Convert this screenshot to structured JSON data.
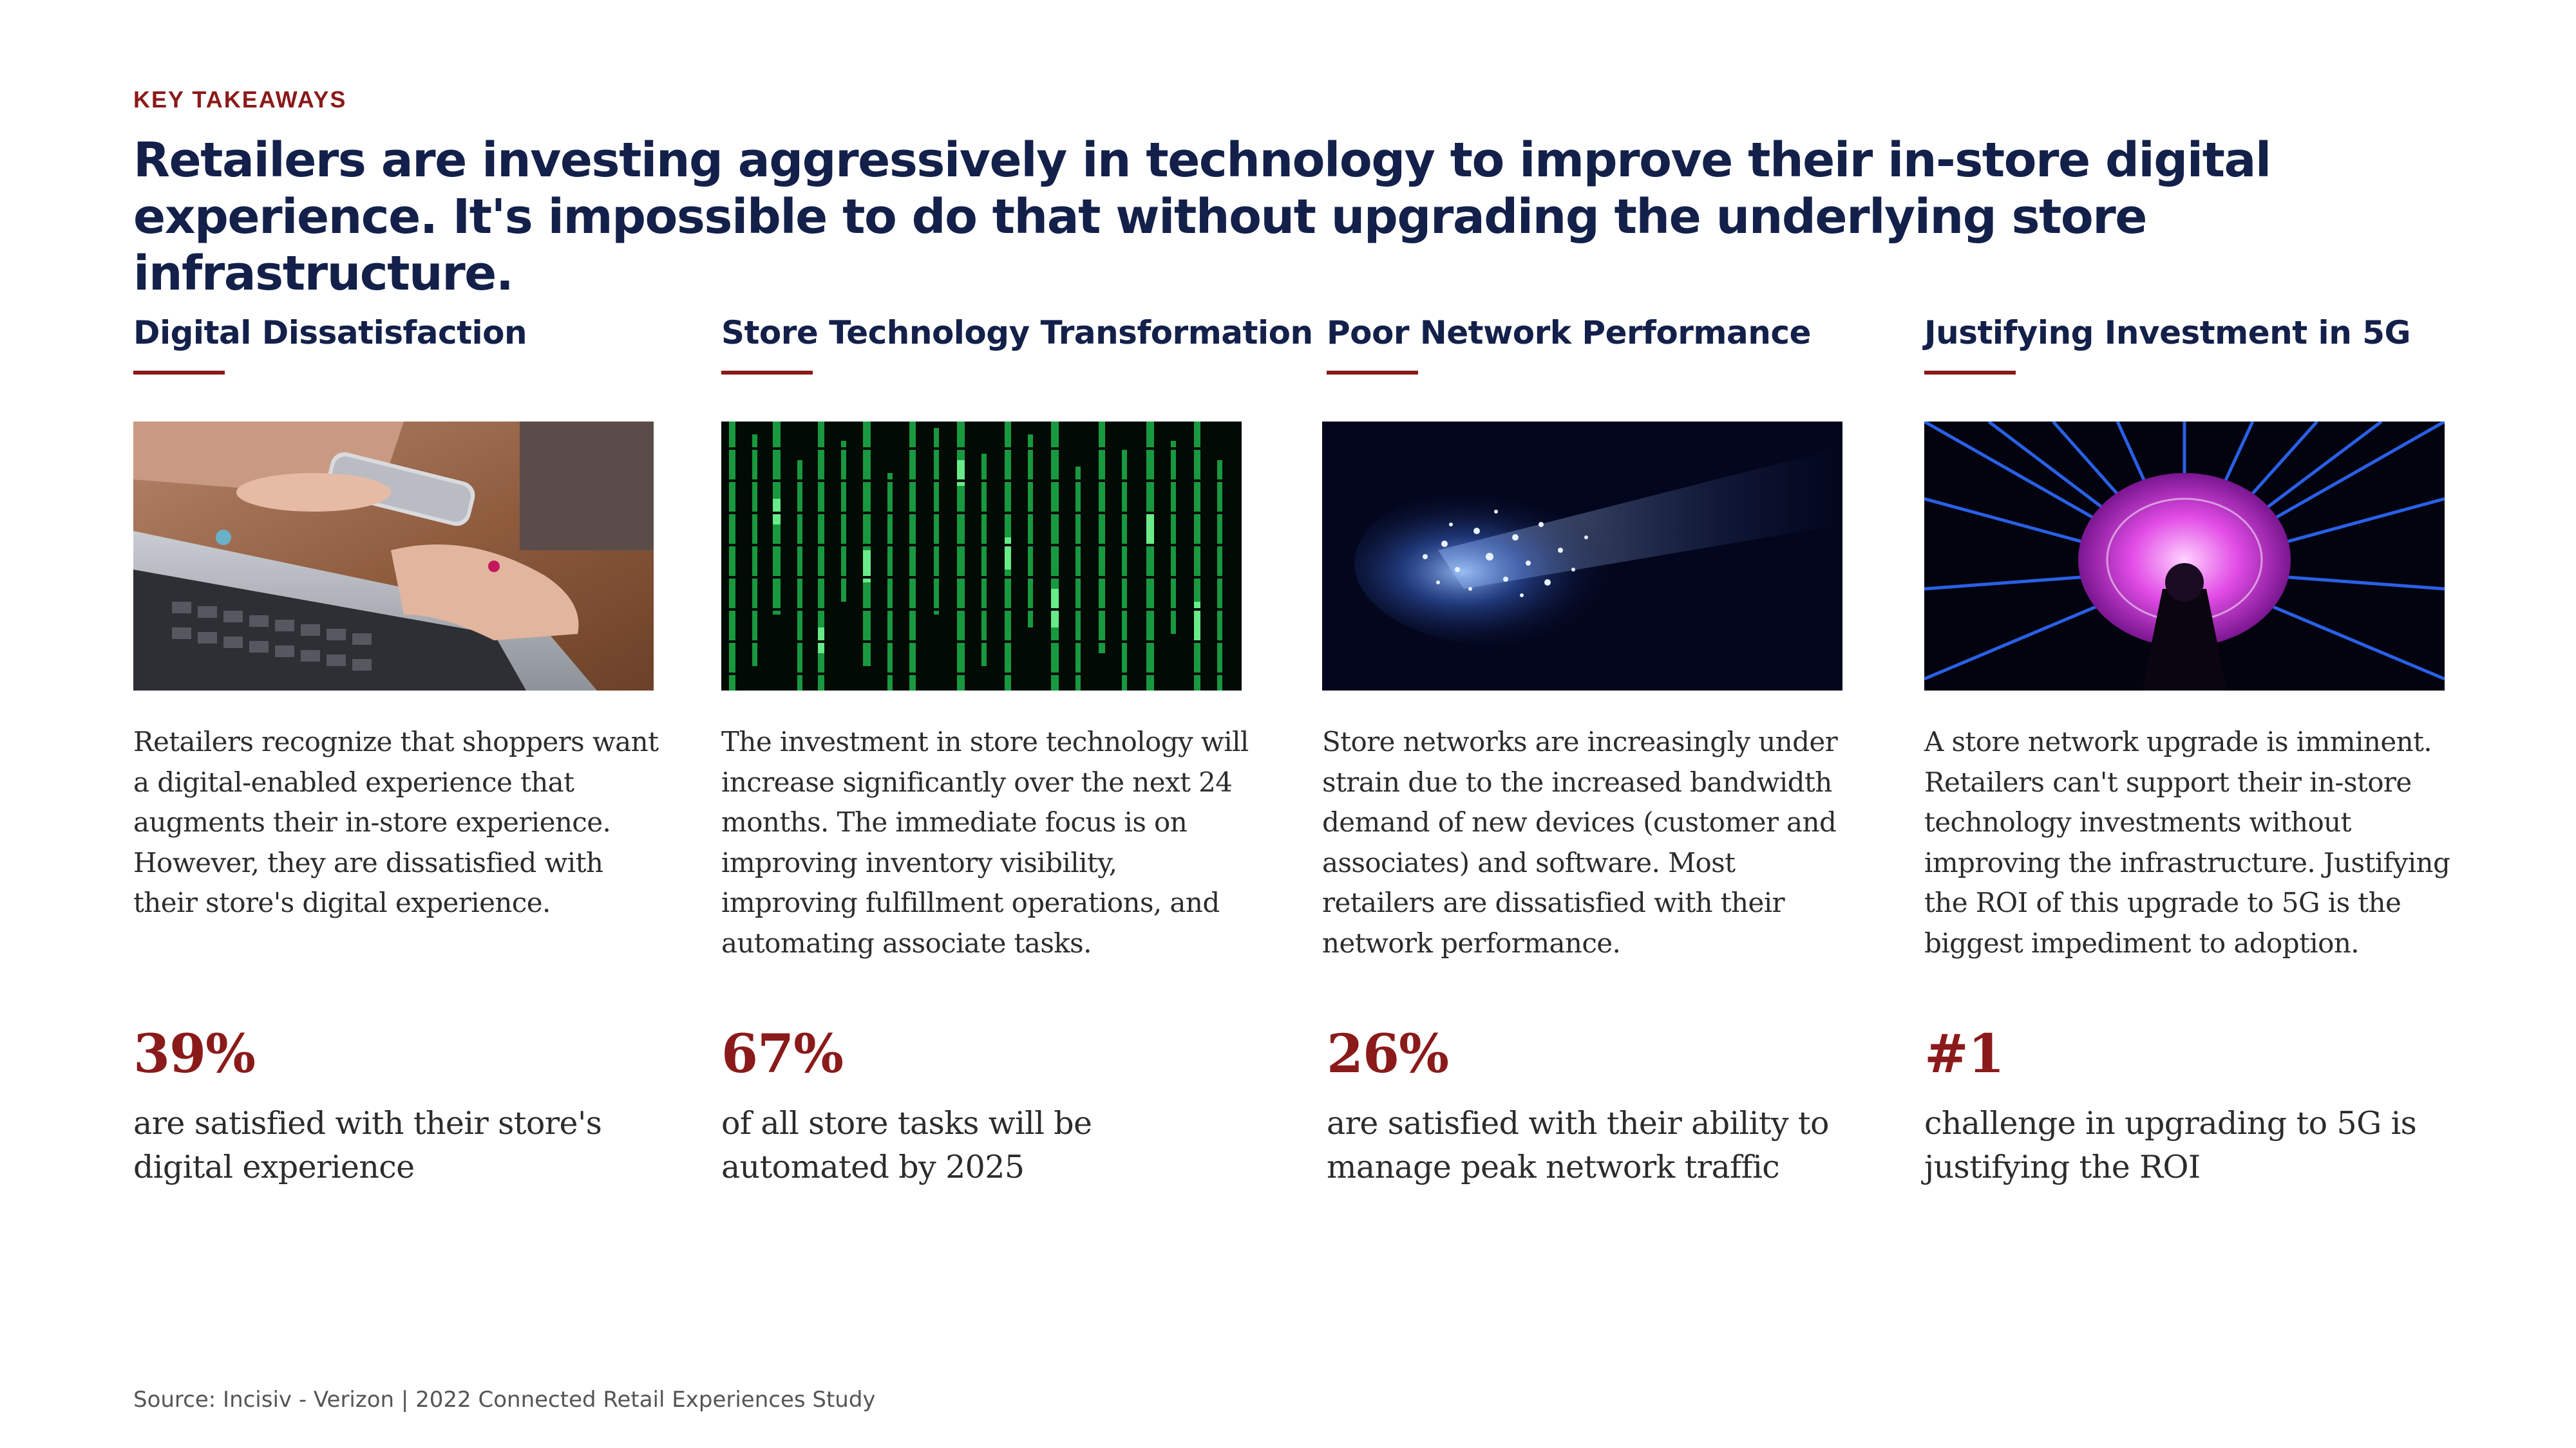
{
  "eyebrow": "KEY TAKEAWAYS",
  "headline": "Retailers are investing aggressively in technology to improve their in-store digital experience. It's impossible to do that without upgrading the underlying store infrastructure.",
  "columns": [
    {
      "title": "Digital Dissatisfaction",
      "image": "laptop-and-smartphone-photo",
      "body": "Retailers recognize that shoppers want a digital-enabled experience that augments their in-store experience. However, they are dissatisfied with their store's digital experience.",
      "stat": "39%",
      "stat_desc": "are satisfied with their store's digital experience"
    },
    {
      "title": "Store Technology Transformation",
      "image": "green-code-matrix-photo",
      "body": "The investment in store technology will increase significantly over the next 24 months. The immediate focus is on improving inventory visibility, improving fulfillment operations, and automating associate tasks.",
      "stat": "67%",
      "stat_desc": "of all store tasks will be automated by 2025"
    },
    {
      "title": "Poor Network Performance",
      "image": "fiber-optic-light-photo",
      "body": "Store networks are increasingly under strain due to the increased bandwidth demand of new devices (customer and associates) and software. Most retailers are dissatisfied with their network performance.",
      "stat": "26%",
      "stat_desc": "are satisfied with their ability to manage peak network traffic"
    },
    {
      "title": "Justifying Investment in 5G",
      "image": "glowing-tower-photo",
      "body": "A store network upgrade is imminent. Retailers can't support their in-store technology investments without improving the infrastructure. Justifying the ROI of this upgrade to 5G is the biggest impediment to adoption.",
      "stat": "#1",
      "stat_desc": "challenge in upgrading to 5G is justifying the ROI"
    }
  ],
  "source": "Source: Incisiv - Verizon | 2022 Connected Retail Experiences Study",
  "colors": {
    "accent": "#8b1a1a",
    "navy": "#13204a",
    "body": "#2c2c2c"
  }
}
